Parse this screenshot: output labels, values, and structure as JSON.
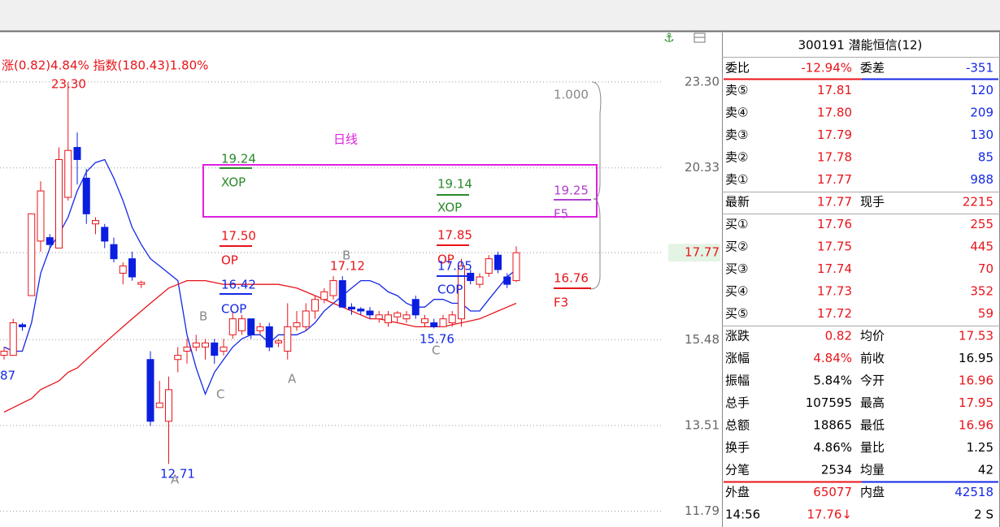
{
  "chart_data": {
    "type": "candlestick",
    "title": "涨(0.82)4.84% 指数(180.43)1.80%",
    "log_scale": true,
    "grid": true,
    "ylim": [
      11.5,
      25.2
    ],
    "yticks": [
      {
        "value": 23.3,
        "label": "23.30"
      },
      20.33,
      17.77,
      15.48,
      13.51,
      11.79
    ],
    "up_color": "#e8141a",
    "down_color": "#0a1ee0",
    "open": [
      15.1,
      15.1,
      15.85,
      16.6,
      18.1,
      18.2,
      17.9,
      19.4,
      21.0,
      20.0,
      18.6,
      18.5,
      18.0,
      17.2,
      17.6,
      16.9,
      15.0,
      13.9,
      13.6,
      15.0,
      15.2,
      15.3,
      15.3,
      15.4,
      15.2,
      15.6,
      15.7,
      16.0,
      15.7,
      15.8,
      15.4,
      15.2,
      15.8,
      15.8,
      16.2,
      16.5,
      16.6,
      17.0,
      16.3,
      16.25,
      16.2,
      16.0,
      15.9,
      16.05,
      16.0,
      16.5,
      15.9,
      15.9,
      15.8,
      15.9,
      16.0,
      17.2,
      16.9,
      17.2,
      17.7,
      17.1,
      17.0
    ],
    "high": [
      15.3,
      16.0,
      15.9,
      18.9,
      19.9,
      18.3,
      21.0,
      23.3,
      21.5,
      20.3,
      18.8,
      18.6,
      18.2,
      17.5,
      17.8,
      17.0,
      15.2,
      14.5,
      14.6,
      15.3,
      15.5,
      15.6,
      15.5,
      15.5,
      15.5,
      16.2,
      16.1,
      16.0,
      15.9,
      15.9,
      15.5,
      16.4,
      16.2,
      16.4,
      16.6,
      16.8,
      17.12,
      17.12,
      16.4,
      16.3,
      16.3,
      16.2,
      16.2,
      16.2,
      16.2,
      16.6,
      16.1,
      16.0,
      16.1,
      16.2,
      17.6,
      17.3,
      17.2,
      17.7,
      17.8,
      17.2,
      17.95
    ],
    "low": [
      15.0,
      15.1,
      15.7,
      16.6,
      17.8,
      17.9,
      17.9,
      19.3,
      19.8,
      18.6,
      18.3,
      17.9,
      17.5,
      16.9,
      17.0,
      16.8,
      13.5,
      13.9,
      12.71,
      14.7,
      14.9,
      15.2,
      15.0,
      14.9,
      15.1,
      15.5,
      15.6,
      15.5,
      15.6,
      15.2,
      15.3,
      15.0,
      15.7,
      15.7,
      16.0,
      16.4,
      16.5,
      16.3,
      16.1,
      16.1,
      16.0,
      15.9,
      15.8,
      15.9,
      15.9,
      16.0,
      15.8,
      15.76,
      15.8,
      15.8,
      15.8,
      16.9,
      16.8,
      17.1,
      17.2,
      16.8,
      16.96
    ],
    "close": [
      15.2,
      15.9,
      15.8,
      18.9,
      19.6,
      18.0,
      20.6,
      20.9,
      20.6,
      18.9,
      18.7,
      18.1,
      17.6,
      17.4,
      17.1,
      16.95,
      13.6,
      14.0,
      14.3,
      15.1,
      15.3,
      15.4,
      15.4,
      15.1,
      15.3,
      16.0,
      16.0,
      15.6,
      15.8,
      15.3,
      15.45,
      15.8,
      15.9,
      16.2,
      16.5,
      16.7,
      17.0,
      16.3,
      16.25,
      16.2,
      16.1,
      16.1,
      16.1,
      16.15,
      16.1,
      16.1,
      16.0,
      15.8,
      16.0,
      16.1,
      17.4,
      17.0,
      17.1,
      17.6,
      17.3,
      16.9,
      17.77
    ],
    "lines": [
      {
        "color": "#1428e6",
        "values": [
          15.3,
          15.2,
          15.2,
          15.9,
          17.2,
          17.9,
          18.3,
          18.8,
          19.6,
          20.2,
          20.5,
          20.6,
          20.0,
          19.3,
          18.5,
          18.0,
          17.6,
          17.4,
          17.2,
          17.0,
          15.6,
          14.8,
          14.2,
          14.7,
          15.0,
          15.3,
          15.5,
          15.6,
          15.6,
          15.4,
          15.6,
          15.6,
          15.6,
          15.7,
          15.9,
          16.2,
          16.4,
          16.6,
          16.8,
          17.0,
          17.0,
          16.9,
          16.7,
          16.6,
          16.4,
          16.3,
          16.3,
          16.5,
          16.5,
          16.4,
          16.4,
          16.2,
          16.2,
          16.5,
          16.8,
          17.1,
          17.3
        ]
      },
      {
        "color": "#e8141a",
        "values": [
          13.8,
          13.9,
          14.0,
          14.1,
          14.3,
          14.4,
          14.5,
          14.7,
          14.8,
          15.0,
          15.2,
          15.4,
          15.6,
          15.8,
          16.0,
          16.2,
          16.4,
          16.6,
          16.8,
          16.9,
          17.0,
          17.0,
          17.0,
          16.95,
          16.9,
          16.9,
          16.9,
          16.9,
          16.9,
          16.9,
          16.9,
          16.85,
          16.8,
          16.7,
          16.6,
          16.5,
          16.4,
          16.3,
          16.2,
          16.1,
          16.0,
          16.0,
          15.95,
          15.9,
          15.85,
          15.8,
          15.8,
          15.8,
          15.8,
          15.85,
          15.9,
          15.95,
          16.0,
          16.1,
          16.2,
          16.3,
          16.4
        ]
      }
    ],
    "annotations": [
      "23.30",
      "日线",
      "19.24",
      "XOP",
      "19.14",
      "XOP",
      "17.50",
      "OP",
      "16.42",
      "COP",
      "17.85",
      "OP",
      "17.05",
      "COP",
      "17.12",
      "15.76",
      "12.71",
      "87",
      "1.000",
      "19.25",
      "F5",
      "16.76",
      "F3",
      "B",
      "C",
      "A",
      "B",
      "C",
      "A"
    ]
  },
  "quote": {
    "title": "300191 潜能恒信(12)",
    "rows": [
      [
        "委比",
        "-12.94%",
        "委差",
        "-351"
      ],
      [
        "卖⑤",
        "17.81",
        "120"
      ],
      [
        "卖④",
        "17.80",
        "209"
      ],
      [
        "卖③",
        "17.79",
        "130"
      ],
      [
        "卖②",
        "17.78",
        "85"
      ],
      [
        "卖①",
        "17.77",
        "988"
      ],
      [
        "最新",
        "17.77",
        "现手",
        "2215"
      ],
      [
        "买①",
        "17.76",
        "255"
      ],
      [
        "买②",
        "17.75",
        "445"
      ],
      [
        "买③",
        "17.74",
        "70"
      ],
      [
        "买④",
        "17.73",
        "352"
      ],
      [
        "买⑤",
        "17.72",
        "59"
      ],
      [
        "涨跌",
        "0.82",
        "均价",
        "17.53"
      ],
      [
        "涨幅",
        "4.84%",
        "前收",
        "16.95"
      ],
      [
        "振幅",
        "5.84%",
        "今开",
        "16.96"
      ],
      [
        "总手",
        "107595",
        "最高",
        "17.95"
      ],
      [
        "总额",
        "18865",
        "最低",
        "16.96"
      ],
      [
        "换手",
        "4.86%",
        "量比",
        "1.25"
      ],
      [
        "分笔",
        "2534",
        "均量",
        "42"
      ],
      [
        "外盘",
        "65077",
        "内盘",
        "42518"
      ],
      [
        "14:56",
        "17.76↓",
        "2 S"
      ]
    ]
  }
}
